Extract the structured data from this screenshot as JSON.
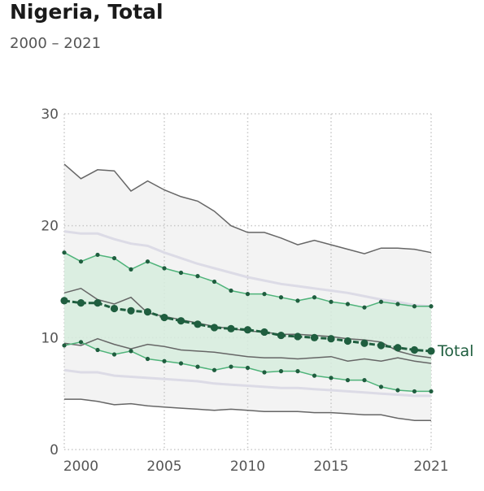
{
  "title": "Nigeria, Total",
  "subtitle": "2000 – 2021",
  "chart_data": {
    "type": "line",
    "x": [
      1999,
      2000,
      2001,
      2002,
      2003,
      2004,
      2005,
      2006,
      2007,
      2008,
      2009,
      2010,
      2011,
      2012,
      2013,
      2014,
      2015,
      2016,
      2017,
      2018,
      2019,
      2020,
      2021
    ],
    "xlim": [
      1999,
      2021
    ],
    "ylim": [
      0,
      30
    ],
    "xticks": [
      2000,
      2005,
      2010,
      2015,
      2021
    ],
    "yticks": [
      0,
      10,
      20,
      30
    ],
    "grid": true,
    "main_series": {
      "name": "Total",
      "values": [
        13.3,
        13.1,
        13.1,
        12.6,
        12.4,
        12.3,
        11.8,
        11.5,
        11.2,
        10.9,
        10.8,
        10.7,
        10.5,
        10.2,
        10.1,
        10.0,
        9.9,
        9.7,
        9.5,
        9.3,
        9.1,
        8.9,
        8.8
      ]
    },
    "inner_band": {
      "upper": [
        17.6,
        16.8,
        17.4,
        17.1,
        16.1,
        16.8,
        16.2,
        15.8,
        15.5,
        15.0,
        14.2,
        13.9,
        13.9,
        13.6,
        13.3,
        13.6,
        13.2,
        13.0,
        12.7,
        13.2,
        13.0,
        12.8,
        12.8
      ],
      "lower": [
        9.3,
        9.6,
        8.9,
        8.5,
        8.8,
        8.1,
        7.9,
        7.7,
        7.4,
        7.1,
        7.4,
        7.3,
        6.9,
        7.0,
        7.0,
        6.6,
        6.4,
        6.2,
        6.2,
        5.6,
        5.3,
        5.2,
        5.2
      ]
    },
    "outer_band": {
      "upper": [
        25.5,
        24.2,
        25.0,
        24.9,
        23.1,
        24.0,
        23.2,
        22.6,
        22.2,
        21.3,
        20.0,
        19.4,
        19.4,
        18.9,
        18.3,
        18.7,
        18.3,
        17.9,
        17.5,
        18.0,
        18.0,
        17.9,
        17.6
      ],
      "lower": [
        4.5,
        4.5,
        4.3,
        4.0,
        4.1,
        3.9,
        3.8,
        3.7,
        3.6,
        3.5,
        3.6,
        3.5,
        3.4,
        3.4,
        3.4,
        3.3,
        3.3,
        3.2,
        3.1,
        3.1,
        2.8,
        2.6,
        2.6
      ]
    },
    "light_lines": [
      [
        19.5,
        19.3,
        19.3,
        18.8,
        18.4,
        18.2,
        17.6,
        17.1,
        16.6,
        16.2,
        15.8,
        15.4,
        15.1,
        14.8,
        14.6,
        14.4,
        14.2,
        14.0,
        13.7,
        13.4,
        13.2,
        12.9,
        12.8
      ],
      [
        7.1,
        6.9,
        6.9,
        6.6,
        6.5,
        6.4,
        6.3,
        6.2,
        6.1,
        5.9,
        5.8,
        5.7,
        5.6,
        5.5,
        5.5,
        5.4,
        5.3,
        5.2,
        5.1,
        5.0,
        4.9,
        4.8,
        4.8
      ]
    ],
    "dark_lines": [
      [
        14.0,
        14.4,
        13.4,
        13.0,
        13.6,
        12.2,
        11.9,
        11.6,
        11.3,
        11.0,
        10.8,
        10.6,
        10.5,
        10.3,
        10.3,
        10.2,
        10.1,
        9.9,
        9.8,
        9.6,
        8.8,
        8.4,
        8.2
      ],
      [
        9.5,
        9.3,
        9.9,
        9.4,
        9.0,
        9.4,
        9.2,
        8.9,
        8.8,
        8.7,
        8.5,
        8.3,
        8.2,
        8.2,
        8.1,
        8.2,
        8.3,
        7.9,
        8.1,
        7.9,
        8.2,
        7.9,
        7.7
      ]
    ],
    "colors": {
      "main": "#1f5e3f",
      "inner_band_fill": "#d6ecdd",
      "inner_band_line": "#4fb37a",
      "outer_band_fill": "#f3f3f3",
      "outer_band_line": "#666666",
      "light_line": "#dcdbe6",
      "dark_line": "#666666",
      "grid": "#c8c8c8"
    }
  }
}
